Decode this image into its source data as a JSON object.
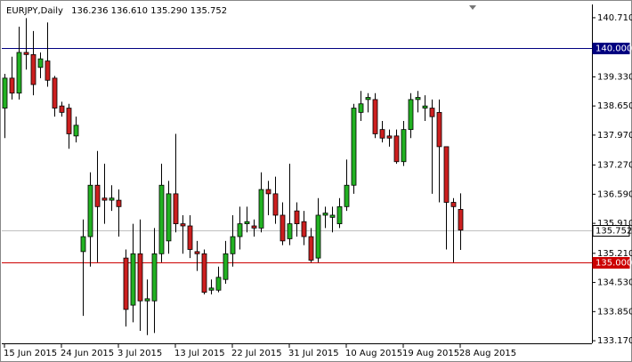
{
  "chart_data": {
    "type": "candlestick",
    "title": "EURJPY,Daily",
    "ohlc_labels": [
      "136.236",
      "136.610",
      "135.290",
      "135.752"
    ],
    "categories": [
      "15 Jun 2015",
      null,
      null,
      null,
      null,
      null,
      null,
      null,
      "24 Jun 2015",
      null,
      null,
      null,
      null,
      null,
      null,
      null,
      "3 Jul 2015",
      null,
      null,
      null,
      null,
      null,
      null,
      null,
      "13 Jul 2015",
      null,
      null,
      null,
      null,
      null,
      null,
      null,
      "22 Jul 2015",
      null,
      null,
      null,
      null,
      null,
      null,
      null,
      "31 Jul 2015",
      null,
      null,
      null,
      null,
      null,
      null,
      null,
      "10 Aug 2015",
      null,
      null,
      null,
      null,
      null,
      null,
      null,
      "19 Aug 2015",
      null,
      null,
      null,
      null,
      null,
      null,
      null,
      "28 Aug 2015"
    ],
    "open": [
      138.6,
      139.3,
      138.95,
      139.9,
      139.85,
      139.55,
      139.7,
      139.3,
      138.65,
      138.6,
      137.95,
      135.25,
      135.6,
      136.8,
      136.5,
      136.45,
      136.45,
      135.1,
      134.0,
      135.2,
      134.1,
      134.1,
      135.2,
      135.5,
      136.6,
      135.9,
      135.85,
      135.25,
      135.2,
      134.35,
      134.35,
      134.6,
      135.2,
      135.6,
      135.9,
      135.85,
      135.8,
      136.7,
      136.6,
      136.1,
      135.55,
      136.2,
      135.95,
      135.6,
      135.1,
      136.1,
      136.05,
      135.9,
      136.3,
      136.8,
      138.5,
      138.8,
      138.8,
      138.1,
      137.95,
      137.95,
      137.35,
      138.1,
      138.8,
      138.6,
      138.6,
      138.5,
      137.7,
      136.4,
      136.236
    ],
    "high": [
      139.4,
      139.8,
      140.5,
      140.7,
      140.4,
      139.9,
      140.6,
      139.35,
      138.75,
      138.7,
      138.4,
      136.0,
      137.1,
      137.6,
      137.3,
      136.8,
      136.7,
      135.3,
      135.9,
      136.0,
      134.6,
      135.8,
      137.3,
      136.9,
      138.0,
      136.1,
      136.1,
      135.5,
      135.3,
      134.6,
      134.9,
      135.5,
      136.1,
      136.3,
      136.3,
      136.0,
      137.1,
      136.9,
      137.0,
      136.4,
      137.3,
      136.4,
      136.2,
      135.8,
      136.5,
      136.3,
      136.3,
      136.5,
      137.4,
      138.7,
      139.0,
      138.95,
      138.95,
      138.3,
      138.1,
      138.1,
      138.3,
      138.95,
      139.0,
      138.9,
      138.8,
      138.8,
      137.7,
      136.5,
      136.61
    ],
    "low": [
      137.9,
      138.8,
      138.8,
      139.5,
      138.9,
      139.3,
      139.1,
      138.4,
      138.4,
      137.65,
      137.8,
      133.75,
      134.9,
      135.0,
      135.9,
      136.2,
      135.6,
      133.5,
      133.6,
      133.4,
      133.3,
      133.35,
      135.0,
      135.2,
      135.7,
      135.2,
      135.1,
      134.8,
      134.25,
      134.25,
      134.3,
      134.5,
      134.9,
      135.3,
      135.7,
      135.6,
      135.7,
      136.1,
      135.9,
      135.4,
      135.4,
      135.6,
      135.4,
      135.0,
      135.0,
      135.8,
      135.7,
      135.8,
      136.2,
      136.6,
      138.3,
      138.5,
      137.9,
      137.8,
      137.7,
      137.3,
      137.25,
      137.9,
      138.5,
      138.3,
      136.6,
      136.4,
      135.3,
      135.0,
      135.29
    ],
    "close": [
      139.3,
      138.95,
      139.9,
      139.85,
      139.15,
      139.75,
      139.25,
      138.6,
      138.5,
      138.0,
      138.2,
      135.6,
      136.8,
      136.3,
      136.45,
      136.5,
      136.3,
      133.9,
      135.2,
      134.1,
      134.15,
      135.2,
      136.8,
      136.6,
      135.9,
      135.85,
      135.3,
      135.2,
      134.3,
      134.4,
      134.65,
      135.2,
      135.6,
      135.9,
      135.95,
      135.8,
      136.7,
      136.6,
      136.1,
      135.5,
      135.9,
      135.9,
      135.6,
      135.05,
      136.1,
      136.15,
      136.1,
      136.3,
      136.8,
      138.6,
      138.7,
      138.85,
      138.0,
      137.9,
      137.9,
      137.35,
      138.1,
      138.8,
      138.85,
      138.65,
      138.4,
      137.7,
      136.4,
      136.3,
      135.752
    ],
    "up_color": "#22b122",
    "down_color": "#cc1f1f",
    "ylim": [
      133.13,
      141.02
    ],
    "yticks": [
      {
        "value": 133.17,
        "label": "133.170"
      },
      {
        "value": 133.85,
        "label": "133.850"
      },
      {
        "value": 134.53,
        "label": "134.530"
      },
      {
        "value": 135.21,
        "label": "135.210"
      },
      {
        "value": 135.91,
        "label": "135.910"
      },
      {
        "value": 136.59,
        "label": "136.590"
      },
      {
        "value": 137.27,
        "label": "137.270"
      },
      {
        "value": 137.97,
        "label": "137.970"
      },
      {
        "value": 138.65,
        "label": "138.650"
      },
      {
        "value": 139.33,
        "label": "139.330"
      },
      {
        "value": 140.71,
        "label": "140.710"
      }
    ],
    "hlines": [
      {
        "value": 140,
        "label": "140.000",
        "color": "#000080"
      },
      {
        "value": 135.752,
        "label": "135.752",
        "color": "#c0c0c0"
      },
      {
        "value": 135,
        "label": "135.000",
        "color": "#cc0000"
      }
    ],
    "grid": false
  }
}
